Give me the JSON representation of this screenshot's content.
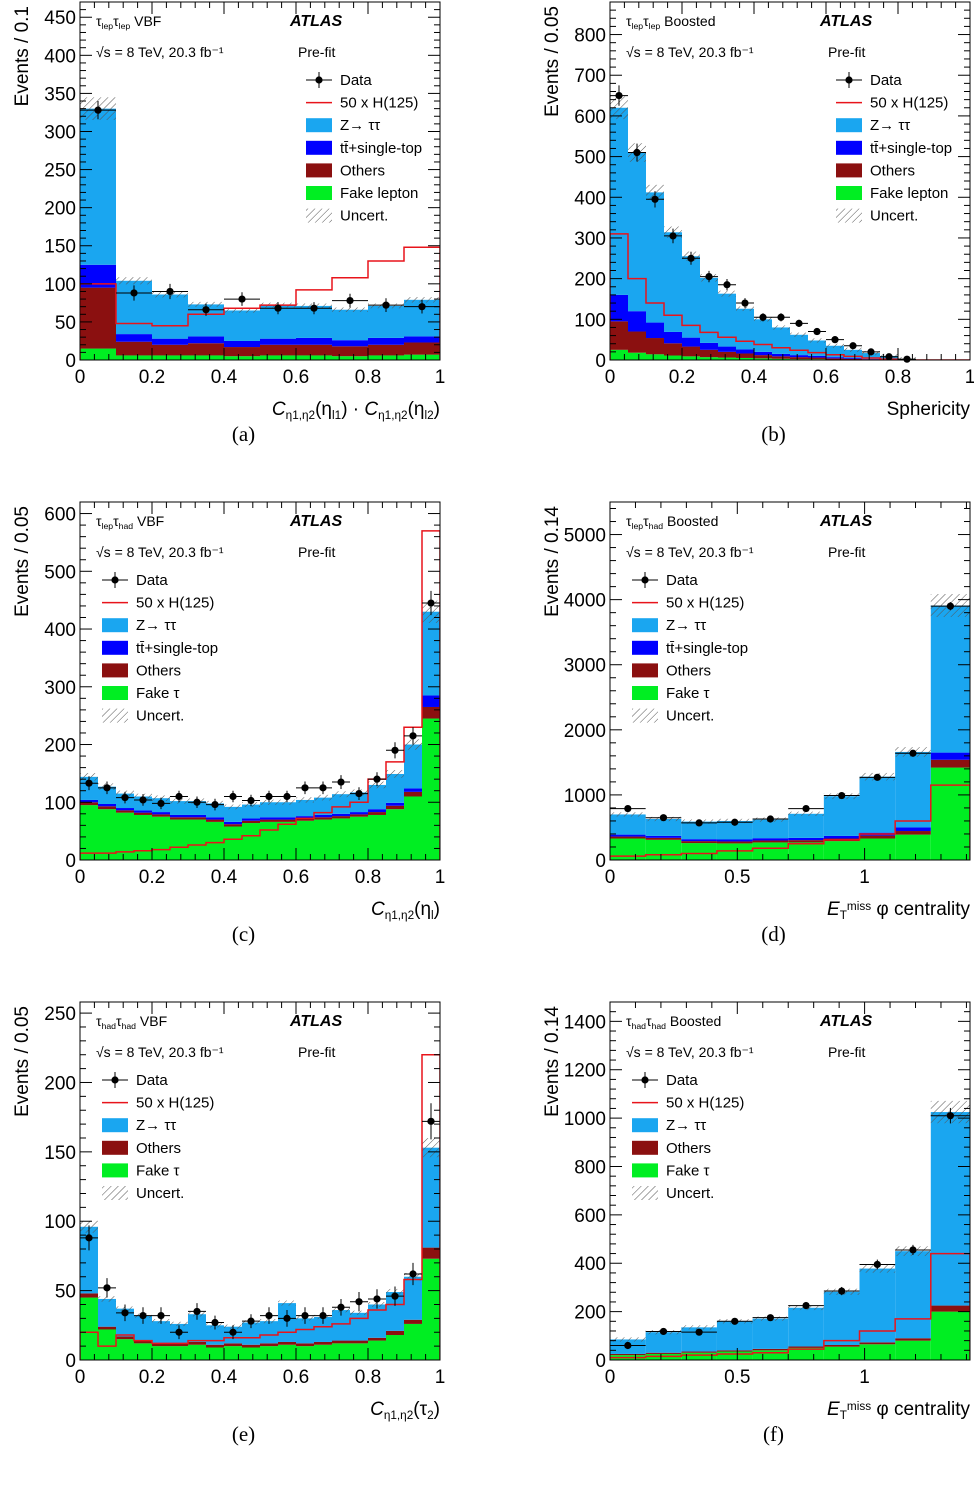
{
  "colors": {
    "ztt": "#1aa6f0",
    "top": "#0000ff",
    "others": "#8b1010",
    "fake": "#00ee22",
    "signal": "#e8141b",
    "data": "#000000"
  },
  "experiment": "ATLAS",
  "energy_lumi": "√s = 8 TeV, 20.3 fb⁻¹",
  "fit_state": "Pre-fit",
  "legend_labels": {
    "data": "Data",
    "signal": "50 x H(125)",
    "ztt": "Z→ ττ",
    "top": "tt̄+single-top",
    "others": "Others",
    "fake_lepton": "Fake lepton",
    "fake_tau": "Fake τ",
    "uncert": "Uncert."
  },
  "captions": [
    "(a)",
    "(b)",
    "(c)",
    "(d)",
    "(e)",
    "(f)"
  ],
  "chart_data": [
    {
      "type": "bar",
      "panel": "(a)",
      "channel": "τlepτlep VBF",
      "ylabel": "Events / 0.1",
      "xlabel": "Cη1,η2(ηl1) · Cη1,η2(ηl2)",
      "xlim": [
        0,
        1
      ],
      "ylim": [
        0,
        470
      ],
      "xticks": [
        0,
        0.2,
        0.4,
        0.6,
        0.8,
        1
      ],
      "yticks": [
        0,
        50,
        100,
        150,
        200,
        250,
        300,
        350,
        400,
        450
      ],
      "bin_edges": [
        0,
        0.1,
        0.2,
        0.3,
        0.4,
        0.5,
        0.6,
        0.7,
        0.8,
        0.9,
        1
      ],
      "series": [
        {
          "key": "fake",
          "values": [
            15,
            6,
            6,
            6,
            5,
            6,
            6,
            5,
            6,
            7
          ]
        },
        {
          "key": "others",
          "values": [
            80,
            18,
            14,
            16,
            12,
            14,
            14,
            13,
            14,
            16
          ]
        },
        {
          "key": "top",
          "values": [
            30,
            10,
            8,
            9,
            8,
            8,
            9,
            8,
            9,
            8
          ]
        },
        {
          "key": "ztt",
          "values": [
            205,
            70,
            58,
            42,
            40,
            44,
            42,
            40,
            42,
            48
          ]
        }
      ],
      "signal": [
        100,
        48,
        45,
        60,
        68,
        72,
        92,
        108,
        130,
        148
      ],
      "data": [
        328,
        88,
        90,
        66,
        80,
        68,
        68,
        78,
        72,
        70
      ],
      "data_err": [
        12,
        10,
        10,
        8,
        9,
        8,
        8,
        9,
        9,
        9
      ],
      "legend_fake": "fake_lepton",
      "has_top": true
    },
    {
      "type": "bar",
      "panel": "(b)",
      "channel": "τlepτlep Boosted",
      "ylabel": "Events / 0.05",
      "xlabel": "Sphericity",
      "xlim": [
        0,
        1
      ],
      "ylim": [
        0,
        880
      ],
      "xticks": [
        0,
        0.2,
        0.4,
        0.6,
        0.8,
        1
      ],
      "yticks": [
        0,
        100,
        200,
        300,
        400,
        500,
        600,
        700,
        800
      ],
      "bin_edges": [
        0,
        0.05,
        0.1,
        0.15,
        0.2,
        0.25,
        0.3,
        0.35,
        0.4,
        0.45,
        0.5,
        0.55,
        0.6,
        0.65,
        0.7,
        0.75,
        0.8,
        0.85,
        0.9,
        0.95,
        1
      ],
      "series": [
        {
          "key": "fake",
          "values": [
            25,
            18,
            14,
            11,
            9,
            7,
            6,
            5,
            4,
            3,
            2,
            2,
            1,
            1,
            1,
            0,
            0,
            0,
            0,
            0
          ]
        },
        {
          "key": "others",
          "values": [
            70,
            52,
            40,
            30,
            24,
            18,
            14,
            11,
            8,
            6,
            5,
            4,
            3,
            2,
            1,
            1,
            0,
            0,
            0,
            0
          ]
        },
        {
          "key": "top",
          "values": [
            65,
            50,
            38,
            28,
            22,
            17,
            13,
            10,
            8,
            6,
            5,
            4,
            3,
            2,
            1,
            1,
            0,
            0,
            0,
            0
          ]
        },
        {
          "key": "ztt",
          "values": [
            460,
            390,
            320,
            245,
            200,
            160,
            130,
            100,
            80,
            65,
            50,
            38,
            28,
            20,
            14,
            8,
            2,
            0,
            0,
            0
          ]
        }
      ],
      "signal": [
        310,
        200,
        140,
        110,
        85,
        68,
        56,
        46,
        38,
        30,
        24,
        18,
        13,
        9,
        5,
        2,
        0,
        0,
        0,
        0
      ],
      "data": [
        650,
        510,
        395,
        305,
        250,
        205,
        185,
        140,
        105,
        105,
        90,
        70,
        50,
        35,
        20,
        8,
        2,
        0,
        0,
        0
      ],
      "data_err": [
        25,
        22,
        20,
        18,
        16,
        14,
        14,
        12,
        10,
        10,
        9,
        8,
        7,
        6,
        4,
        3,
        1.5,
        0,
        0,
        0
      ],
      "data_n": 17,
      "legend_fake": "fake_lepton",
      "has_top": true
    },
    {
      "type": "bar",
      "panel": "(c)",
      "channel": "τlepτhad VBF",
      "ylabel": "Events / 0.05",
      "xlabel": "Cη1,η2(ηl)",
      "xlim": [
        0,
        1
      ],
      "ylim": [
        0,
        620
      ],
      "xticks": [
        0,
        0.2,
        0.4,
        0.6,
        0.8,
        1
      ],
      "yticks": [
        0,
        100,
        200,
        300,
        400,
        500,
        600
      ],
      "bin_edges": [
        0,
        0.05,
        0.1,
        0.15,
        0.2,
        0.25,
        0.3,
        0.35,
        0.4,
        0.45,
        0.5,
        0.55,
        0.6,
        0.65,
        0.7,
        0.75,
        0.8,
        0.85,
        0.9,
        0.95,
        1
      ],
      "series": [
        {
          "key": "fake",
          "values": [
            95,
            88,
            82,
            78,
            75,
            70,
            70,
            66,
            58,
            64,
            66,
            66,
            68,
            70,
            72,
            75,
            78,
            88,
            110,
            245
          ]
        },
        {
          "key": "others",
          "values": [
            5,
            5,
            4,
            4,
            4,
            4,
            4,
            4,
            4,
            4,
            4,
            4,
            4,
            4,
            4,
            4,
            5,
            6,
            8,
            20
          ]
        },
        {
          "key": "top",
          "values": [
            4,
            4,
            4,
            4,
            4,
            4,
            4,
            4,
            4,
            4,
            4,
            4,
            4,
            4,
            4,
            4,
            5,
            5,
            6,
            20
          ]
        },
        {
          "key": "ztt",
          "values": [
            40,
            30,
            25,
            24,
            24,
            24,
            24,
            24,
            26,
            24,
            26,
            26,
            28,
            30,
            34,
            34,
            42,
            50,
            76,
            145
          ]
        }
      ],
      "signal": [
        12,
        12,
        14,
        16,
        18,
        22,
        26,
        30,
        36,
        42,
        52,
        62,
        72,
        82,
        92,
        100,
        140,
        170,
        230,
        570
      ],
      "data": [
        133,
        125,
        108,
        104,
        98,
        110,
        100,
        96,
        110,
        103,
        110,
        110,
        125,
        125,
        135,
        115,
        140,
        190,
        215,
        445
      ],
      "data_err": [
        12,
        11,
        10,
        10,
        10,
        10,
        10,
        10,
        10,
        10,
        10,
        10,
        11,
        11,
        12,
        11,
        12,
        14,
        15,
        21
      ],
      "legend_fake": "fake_tau",
      "has_top": true
    },
    {
      "type": "bar",
      "panel": "(d)",
      "channel": "τlepτhad Boosted",
      "ylabel": "Events / 0.14",
      "xlabel": "ETmiss φ centrality",
      "xlim": [
        0,
        1.414
      ],
      "ylim": [
        0,
        5500
      ],
      "xticks": [
        0,
        0.5,
        1
      ],
      "yticks": [
        0,
        1000,
        2000,
        3000,
        4000,
        5000
      ],
      "bin_edges": [
        0,
        0.14,
        0.28,
        0.42,
        0.56,
        0.7,
        0.84,
        0.98,
        1.12,
        1.26,
        1.414
      ],
      "series": [
        {
          "key": "fake",
          "values": [
            330,
            310,
            260,
            255,
            270,
            270,
            290,
            330,
            390,
            1420
          ]
        },
        {
          "key": "others",
          "values": [
            30,
            30,
            30,
            30,
            30,
            35,
            40,
            45,
            55,
            120
          ]
        },
        {
          "key": "top",
          "values": [
            30,
            30,
            30,
            30,
            35,
            35,
            40,
            45,
            55,
            110
          ]
        },
        {
          "key": "ztt",
          "values": [
            310,
            260,
            270,
            285,
            285,
            370,
            610,
            860,
            1160,
            2260
          ]
        }
      ],
      "signal": [
        60,
        80,
        100,
        140,
        180,
        250,
        310,
        400,
        600,
        1150
      ],
      "data": [
        790,
        650,
        570,
        580,
        630,
        790,
        990,
        1270,
        1640,
        3900
      ],
      "data_err": [
        28,
        26,
        24,
        24,
        25,
        28,
        31,
        36,
        40,
        62
      ],
      "legend_fake": "fake_tau",
      "has_top": true
    },
    {
      "type": "bar",
      "panel": "(e)",
      "channel": "τhadτhad VBF",
      "ylabel": "Events / 0.05",
      "xlabel": "Cη1,η2(τ2)",
      "xlim": [
        0,
        1
      ],
      "ylim": [
        0,
        258
      ],
      "xticks": [
        0,
        0.2,
        0.4,
        0.6,
        0.8,
        1
      ],
      "yticks": [
        0,
        50,
        100,
        150,
        200,
        250
      ],
      "bin_edges": [
        0,
        0.05,
        0.1,
        0.15,
        0.2,
        0.25,
        0.3,
        0.35,
        0.4,
        0.45,
        0.5,
        0.55,
        0.6,
        0.65,
        0.7,
        0.75,
        0.8,
        0.85,
        0.9,
        0.95,
        1
      ],
      "series": [
        {
          "key": "fake",
          "values": [
            45,
            22,
            15,
            12,
            10,
            10,
            11,
            9,
            10,
            9,
            10,
            11,
            10,
            11,
            12,
            12,
            14,
            18,
            26,
            73
          ]
        },
        {
          "key": "others",
          "values": [
            3,
            2,
            2,
            2,
            2,
            2,
            2,
            2,
            2,
            2,
            2,
            2,
            2,
            2,
            2,
            2,
            2,
            3,
            3,
            8
          ]
        },
        {
          "key": "ztt",
          "values": [
            48,
            20,
            20,
            18,
            16,
            14,
            20,
            14,
            12,
            16,
            16,
            28,
            18,
            18,
            22,
            20,
            24,
            28,
            31,
            72
          ]
        }
      ],
      "signal": [
        20,
        10,
        18,
        14,
        12,
        12,
        14,
        14,
        16,
        16,
        18,
        20,
        22,
        24,
        26,
        30,
        36,
        40,
        58,
        220
      ],
      "data": [
        88,
        52,
        34,
        32,
        32,
        20,
        35,
        27,
        20,
        28,
        32,
        30,
        32,
        32,
        38,
        42,
        44,
        46,
        62,
        172
      ],
      "data_err": [
        9,
        7,
        6,
        6,
        6,
        5,
        6,
        5,
        5,
        5,
        6,
        6,
        6,
        6,
        6,
        7,
        7,
        7,
        8,
        13
      ],
      "legend_fake": "fake_tau",
      "has_top": false
    },
    {
      "type": "bar",
      "panel": "(f)",
      "channel": "τhadτhad Boosted",
      "ylabel": "Events / 0.14",
      "xlabel": "ETmiss φ centrality",
      "xlim": [
        0,
        1.414
      ],
      "ylim": [
        0,
        1480
      ],
      "xticks": [
        0,
        0.5,
        1
      ],
      "yticks": [
        0,
        200,
        400,
        600,
        800,
        1000,
        1200,
        1400
      ],
      "bin_edges": [
        0,
        0.14,
        0.28,
        0.42,
        0.56,
        0.7,
        0.84,
        0.98,
        1.12,
        1.26,
        1.414
      ],
      "series": [
        {
          "key": "fake",
          "values": [
            20,
            25,
            30,
            35,
            40,
            50,
            55,
            65,
            80,
            200
          ]
        },
        {
          "key": "others",
          "values": [
            5,
            5,
            5,
            5,
            6,
            6,
            7,
            8,
            10,
            25
          ]
        },
        {
          "key": "ztt",
          "values": [
            60,
            85,
            100,
            120,
            125,
            160,
            220,
            305,
            360,
            800
          ]
        }
      ],
      "signal": [
        10,
        15,
        20,
        25,
        30,
        45,
        80,
        120,
        170,
        440
      ],
      "data": [
        60,
        118,
        115,
        160,
        175,
        225,
        285,
        395,
        455,
        1010
      ],
      "data_err": [
        8,
        11,
        11,
        13,
        13,
        15,
        17,
        20,
        21,
        32
      ],
      "legend_fake": "fake_tau",
      "has_top": false
    }
  ]
}
